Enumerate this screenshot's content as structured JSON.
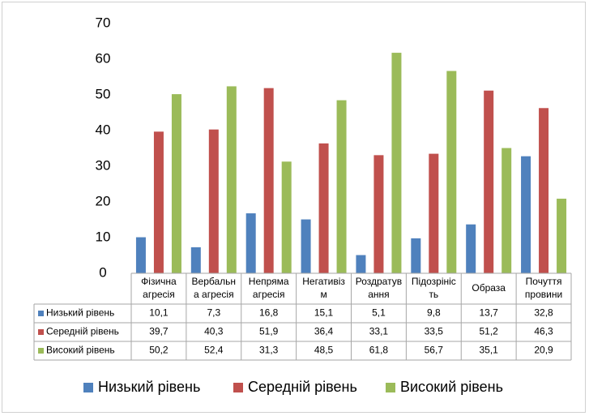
{
  "chart_data": {
    "type": "bar",
    "categories": [
      [
        "Фізична",
        "агресія"
      ],
      [
        "Вербальн",
        "а агресія"
      ],
      [
        "Непряма",
        "агресія"
      ],
      [
        "Негативіз",
        "м"
      ],
      [
        "Роздратув",
        "ання"
      ],
      [
        "Підозрініс",
        "ть"
      ],
      [
        "Образа"
      ],
      [
        "Почуття",
        "провини"
      ]
    ],
    "series": [
      {
        "name": "Низький рівень",
        "color": "#4f81bd",
        "values": [
          10.1,
          7.3,
          16.8,
          15.1,
          5.1,
          9.8,
          13.7,
          32.8
        ],
        "labels": [
          "10,1",
          "7,3",
          "16,8",
          "15,1",
          "5,1",
          "9,8",
          "13,7",
          "32,8"
        ]
      },
      {
        "name": "Середній рівень",
        "color": "#c0504d",
        "values": [
          39.7,
          40.3,
          51.9,
          36.4,
          33.1,
          33.5,
          51.2,
          46.3
        ],
        "labels": [
          "39,7",
          "40,3",
          "51,9",
          "36,4",
          "33,1",
          "33,5",
          "51,2",
          "46,3"
        ]
      },
      {
        "name": "Високий рівень",
        "color": "#9bbb59",
        "values": [
          50.2,
          52.4,
          31.3,
          48.5,
          61.8,
          56.7,
          35.1,
          20.9
        ],
        "labels": [
          "50,2",
          "52,4",
          "31,3",
          "48,5",
          "61,8",
          "56,7",
          "35,1",
          "20,9"
        ]
      }
    ],
    "ylim": [
      0,
      70
    ],
    "yticks": [
      "0",
      "10",
      "20",
      "30",
      "40",
      "50",
      "60",
      "70"
    ],
    "grid": false,
    "legend": "bottom",
    "data_table": true
  }
}
